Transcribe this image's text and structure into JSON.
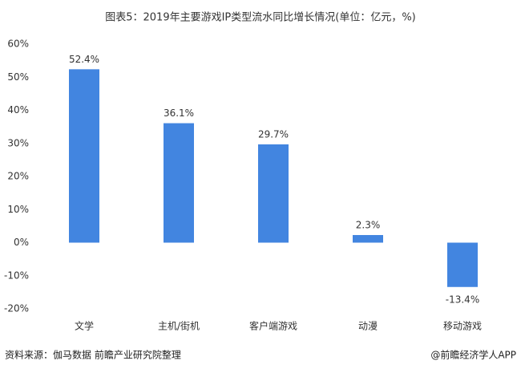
{
  "chart_data": {
    "type": "bar",
    "title": "图表5：2019年主要游戏IP类型流水同比增长情况(单位：亿元，%)",
    "categories": [
      "文学",
      "主机/街机",
      "客户端游戏",
      "动漫",
      "移动游戏"
    ],
    "values": [
      52.4,
      36.1,
      29.7,
      2.3,
      -13.4
    ],
    "value_labels": [
      "52.4%",
      "36.1%",
      "29.7%",
      "2.3%",
      "-13.4%"
    ],
    "color": "#4285e0",
    "ylim": [
      -20,
      60
    ],
    "yticks": [
      {
        "value": -20,
        "label": "-20%"
      },
      {
        "value": -10,
        "label": "-10%"
      },
      {
        "value": 0,
        "label": "0%"
      },
      {
        "value": 10,
        "label": "10%"
      },
      {
        "value": 20,
        "label": "20%"
      },
      {
        "value": 30,
        "label": "30%"
      },
      {
        "value": 40,
        "label": "40%"
      },
      {
        "value": 50,
        "label": "50%"
      },
      {
        "value": 60,
        "label": "60%"
      }
    ],
    "grid": false,
    "source": "资料来源：伽马数据 前瞻产业研究院整理",
    "credit": "@前瞻经济学人APP"
  }
}
